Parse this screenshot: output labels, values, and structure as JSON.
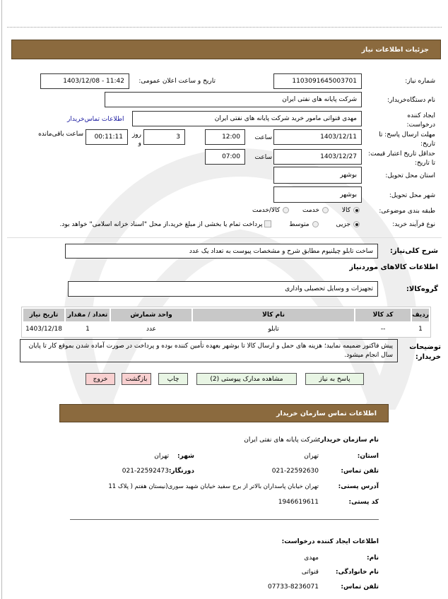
{
  "header": {
    "title": "جزئیات اطلاعات نیاز"
  },
  "form": {
    "need_number_label": "شماره نیاز:",
    "need_number": "1103091645003701",
    "announce_label": "تاریخ و ساعت اعلان عمومی:",
    "announce_value": "1403/12/08 - 11:42",
    "buyer_org_label": "نام دستگاه‌خریدار:",
    "buyer_org": "شرکت پایانه های نفتی ایران",
    "creator_label": "ایجاد کننده درخواست:",
    "creator": "مهدی قنواتی مامور خرید شرکت پایانه های نفتی ایران",
    "contact_link": "اطلاعات تماس‌خریدار",
    "deadline_label": "مهلت ارسال پاسخ: تا تاریخ:",
    "deadline_date": "1403/12/11",
    "time_label": "ساعت",
    "deadline_time": "12:00",
    "days": "3",
    "days_label": "روز و",
    "remaining": "00:11:11",
    "remaining_label": "ساعت باقی‌مانده",
    "validity_label": "حداقل تاریخ اعتبار قیمت: تا تاریخ:",
    "validity_date": "1403/12/27",
    "validity_time": "07:00",
    "province_label": "استان محل تحویل:",
    "province": "بوشهر",
    "city_label": "شهر محل تحویل:",
    "city": "بوشهر",
    "category_label": "طبقه بندی موضوعی:",
    "category_options": [
      "کالا",
      "خدمت",
      "کالا/خدمت"
    ],
    "category_selected": "کالا",
    "process_label": "نوع فرآیند خرید:",
    "process_options": [
      "جزیی",
      "متوسط"
    ],
    "process_selected": "جزیی",
    "payment_note": "پرداخت تمام یا بخشی از مبلغ خرید،از محل \"اسناد خزانه اسلامی\" خواهد بود.",
    "summary_label": "شرح کلی‌نیاز:",
    "summary": "ساخت تابلو چیلنیوم مطابق شرح و مشخصات پیوست به تعداد یک عدد",
    "goods_info_title": "اطلاعات کالاهای موردنیاز",
    "goods_group_label": "گروه‌کالا:",
    "goods_group": "تجهیزات و وسایل تحصیلی واداری"
  },
  "table": {
    "headers": [
      "ردیف",
      "کد کالا",
      "نام کالا",
      "واحد شمارش",
      "تعداد / مقدار",
      "تاریخ نیاز"
    ],
    "rows": [
      [
        "1",
        "--",
        "تابلو",
        "عدد",
        "1",
        "1403/12/18"
      ]
    ]
  },
  "notes": {
    "label": "توضیحات خریدار:",
    "text": "پیش فاکتور ضمیمه نمایید؛ هزینه های حمل و ارسال کالا تا بوشهر بعهده تأمین کننده بوده و پرداخت در صورت آماده شدن بموقع کار تا پایان سال انجام میشود."
  },
  "buttons": {
    "reply": "پاسخ به نیاز",
    "attachments": "مشاهده مدارک پیوستی (2)",
    "print": "چاپ",
    "back": "بازگشت",
    "exit": "خروج"
  },
  "contact": {
    "title": "اطلاعات تماس سازمان خریدار",
    "org_label": "نام سازمان خریدار:",
    "org": "شرکت پایانه های نفتی ایران",
    "province_label": "استان:",
    "province": "تهران",
    "city_label": "شهر:",
    "city": "تهران",
    "phone_label": "تلفن تماس:",
    "phone": "021-22592630",
    "fax_label": "دورنگار:",
    "fax": "021-22592473",
    "address_label": "آدرس پستی:",
    "address": "تهران خیابان پاسداران بالاتر از برج سفید خیابان شهید سوری(نیستان هفتم ( پلاک 11",
    "postal_label": "کد پستی:",
    "postal": "1946619611"
  },
  "creator_info": {
    "title": "اطلاعات ایجاد کننده درخواست:",
    "name_label": "نام:",
    "name": "مهدی",
    "family_label": "نام خانوادگی:",
    "family": "قنواتی",
    "phone_label": "تلفن تماس:",
    "phone": "07733-8236071"
  },
  "colors": {
    "header_bar": "#8b6a3e",
    "link": "#1a1aa0",
    "button_green": "#e8f5e4",
    "button_red": "#f8d0d0"
  }
}
